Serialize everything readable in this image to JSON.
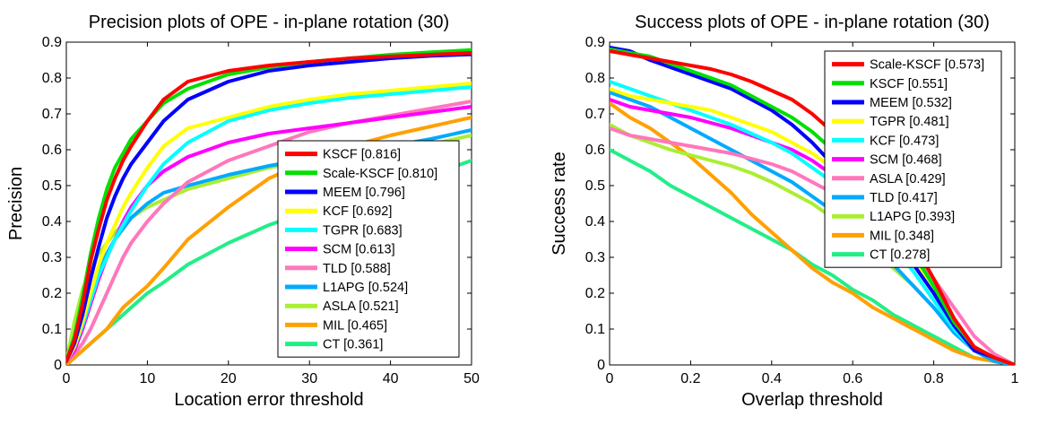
{
  "chart_data": [
    {
      "type": "line",
      "title": "Precision plots of OPE - in-plane rotation (30)",
      "xlabel": "Location error threshold",
      "ylabel": "Precision",
      "xlim": [
        0,
        50
      ],
      "ylim": [
        0,
        0.9
      ],
      "xticks": [
        "0",
        "10",
        "20",
        "30",
        "40",
        "50"
      ],
      "yticks": [
        "0",
        "0.1",
        "0.2",
        "0.3",
        "0.4",
        "0.5",
        "0.6",
        "0.7",
        "0.8",
        "0.9"
      ],
      "legend_position": "center-right",
      "x": [
        0,
        1,
        2,
        3,
        4,
        5,
        6,
        7,
        8,
        10,
        12,
        15,
        20,
        25,
        30,
        35,
        40,
        45,
        50
      ],
      "series": [
        {
          "name": "KSCF [0.816]",
          "color": "#ff0000",
          "values": [
            0.01,
            0.07,
            0.17,
            0.29,
            0.38,
            0.46,
            0.52,
            0.57,
            0.61,
            0.68,
            0.74,
            0.79,
            0.82,
            0.835,
            0.845,
            0.855,
            0.86,
            0.865,
            0.87
          ]
        },
        {
          "name": "Scale-KSCF [0.810]",
          "color": "#00e000",
          "values": [
            0.01,
            0.08,
            0.19,
            0.31,
            0.41,
            0.49,
            0.55,
            0.59,
            0.63,
            0.68,
            0.73,
            0.77,
            0.81,
            0.83,
            0.845,
            0.855,
            0.865,
            0.872,
            0.878
          ]
        },
        {
          "name": "MEEM [0.796]",
          "color": "#0000ff",
          "values": [
            0.01,
            0.06,
            0.14,
            0.24,
            0.33,
            0.41,
            0.47,
            0.52,
            0.56,
            0.62,
            0.68,
            0.74,
            0.79,
            0.82,
            0.835,
            0.845,
            0.855,
            0.862,
            0.866
          ]
        },
        {
          "name": "KCF [0.692]",
          "color": "#ffff00",
          "values": [
            0.01,
            0.05,
            0.12,
            0.2,
            0.28,
            0.34,
            0.39,
            0.44,
            0.48,
            0.55,
            0.61,
            0.66,
            0.69,
            0.72,
            0.74,
            0.755,
            0.765,
            0.775,
            0.785
          ]
        },
        {
          "name": "TGPR [0.683]",
          "color": "#00ffff",
          "values": [
            0.01,
            0.05,
            0.11,
            0.18,
            0.25,
            0.3,
            0.35,
            0.39,
            0.43,
            0.5,
            0.56,
            0.62,
            0.68,
            0.71,
            0.73,
            0.745,
            0.755,
            0.765,
            0.775
          ]
        },
        {
          "name": "SCM [0.613]",
          "color": "#ff00ff",
          "values": [
            0.01,
            0.04,
            0.1,
            0.17,
            0.24,
            0.3,
            0.35,
            0.4,
            0.44,
            0.5,
            0.54,
            0.58,
            0.62,
            0.645,
            0.66,
            0.675,
            0.69,
            0.705,
            0.72
          ]
        },
        {
          "name": "TLD [0.588]",
          "color": "#ff77bb",
          "values": [
            0.01,
            0.03,
            0.06,
            0.1,
            0.15,
            0.2,
            0.25,
            0.3,
            0.34,
            0.4,
            0.45,
            0.51,
            0.57,
            0.61,
            0.65,
            0.675,
            0.695,
            0.715,
            0.735
          ]
        },
        {
          "name": "L1APG [0.524]",
          "color": "#00aaff",
          "values": [
            0.01,
            0.05,
            0.12,
            0.19,
            0.26,
            0.31,
            0.35,
            0.38,
            0.41,
            0.45,
            0.48,
            0.5,
            0.53,
            0.555,
            0.575,
            0.595,
            0.61,
            0.63,
            0.655
          ]
        },
        {
          "name": "ASLA [0.521]",
          "color": "#aaee33",
          "values": [
            0.01,
            0.12,
            0.21,
            0.27,
            0.31,
            0.34,
            0.37,
            0.39,
            0.41,
            0.44,
            0.46,
            0.49,
            0.52,
            0.55,
            0.57,
            0.585,
            0.6,
            0.615,
            0.64
          ]
        },
        {
          "name": "MIL [0.465]",
          "color": "#ffa000",
          "values": [
            0.0,
            0.02,
            0.04,
            0.06,
            0.08,
            0.1,
            0.13,
            0.16,
            0.18,
            0.22,
            0.27,
            0.35,
            0.44,
            0.52,
            0.57,
            0.61,
            0.64,
            0.665,
            0.69
          ]
        },
        {
          "name": "CT [0.361]",
          "color": "#22ee88",
          "values": [
            0.0,
            0.02,
            0.04,
            0.06,
            0.08,
            0.1,
            0.12,
            0.14,
            0.16,
            0.2,
            0.23,
            0.28,
            0.34,
            0.39,
            0.43,
            0.47,
            0.5,
            0.53,
            0.57
          ]
        }
      ]
    },
    {
      "type": "line",
      "title": "Success plots of OPE - in-plane rotation (30)",
      "xlabel": "Overlap threshold",
      "ylabel": "Success rate",
      "xlim": [
        0,
        1
      ],
      "ylim": [
        0,
        0.9
      ],
      "xticks": [
        "0",
        "0.2",
        "0.4",
        "0.6",
        "0.8",
        "1"
      ],
      "yticks": [
        "0",
        "0.1",
        "0.2",
        "0.3",
        "0.4",
        "0.5",
        "0.6",
        "0.7",
        "0.8",
        "0.9"
      ],
      "legend_position": "top-right",
      "x": [
        0,
        0.05,
        0.1,
        0.15,
        0.2,
        0.25,
        0.3,
        0.35,
        0.4,
        0.45,
        0.5,
        0.55,
        0.6,
        0.65,
        0.7,
        0.75,
        0.8,
        0.85,
        0.9,
        0.95,
        1.0
      ],
      "series": [
        {
          "name": "Scale-KSCF [0.573]",
          "color": "#ff0000",
          "values": [
            0.875,
            0.865,
            0.855,
            0.845,
            0.835,
            0.825,
            0.81,
            0.79,
            0.765,
            0.74,
            0.7,
            0.65,
            0.59,
            0.51,
            0.43,
            0.34,
            0.24,
            0.13,
            0.05,
            0.02,
            0.0
          ]
        },
        {
          "name": "KSCF [0.551]",
          "color": "#00e000",
          "values": [
            0.88,
            0.87,
            0.86,
            0.84,
            0.82,
            0.8,
            0.78,
            0.75,
            0.72,
            0.69,
            0.65,
            0.6,
            0.54,
            0.47,
            0.39,
            0.31,
            0.22,
            0.12,
            0.05,
            0.02,
            0.0
          ]
        },
        {
          "name": "MEEM [0.532]",
          "color": "#0000ff",
          "values": [
            0.885,
            0.875,
            0.85,
            0.83,
            0.81,
            0.79,
            0.77,
            0.74,
            0.71,
            0.67,
            0.62,
            0.56,
            0.5,
            0.43,
            0.36,
            0.28,
            0.2,
            0.11,
            0.04,
            0.02,
            0.0
          ]
        },
        {
          "name": "TGPR [0.481]",
          "color": "#ffff00",
          "values": [
            0.77,
            0.75,
            0.74,
            0.73,
            0.72,
            0.71,
            0.69,
            0.67,
            0.65,
            0.62,
            0.59,
            0.55,
            0.5,
            0.44,
            0.37,
            0.29,
            0.2,
            0.11,
            0.04,
            0.02,
            0.0
          ]
        },
        {
          "name": "KCF [0.473]",
          "color": "#00ffff",
          "values": [
            0.79,
            0.77,
            0.75,
            0.73,
            0.71,
            0.69,
            0.67,
            0.645,
            0.62,
            0.59,
            0.55,
            0.51,
            0.46,
            0.4,
            0.33,
            0.26,
            0.18,
            0.1,
            0.04,
            0.02,
            0.0
          ]
        },
        {
          "name": "SCM [0.468]",
          "color": "#ff00ff",
          "values": [
            0.74,
            0.72,
            0.71,
            0.7,
            0.69,
            0.675,
            0.66,
            0.64,
            0.62,
            0.6,
            0.57,
            0.53,
            0.48,
            0.42,
            0.35,
            0.28,
            0.2,
            0.11,
            0.05,
            0.02,
            0.0
          ]
        },
        {
          "name": "ASLA [0.429]",
          "color": "#ff77bb",
          "values": [
            0.66,
            0.64,
            0.63,
            0.62,
            0.61,
            0.6,
            0.59,
            0.575,
            0.56,
            0.54,
            0.51,
            0.48,
            0.44,
            0.4,
            0.35,
            0.3,
            0.24,
            0.16,
            0.08,
            0.03,
            0.0
          ]
        },
        {
          "name": "TLD [0.417]",
          "color": "#00aaff",
          "values": [
            0.76,
            0.74,
            0.72,
            0.69,
            0.66,
            0.63,
            0.6,
            0.57,
            0.54,
            0.51,
            0.47,
            0.43,
            0.38,
            0.33,
            0.28,
            0.22,
            0.16,
            0.09,
            0.04,
            0.01,
            0.0
          ]
        },
        {
          "name": "L1APG [0.393]",
          "color": "#aaee33",
          "values": [
            0.67,
            0.64,
            0.62,
            0.6,
            0.585,
            0.57,
            0.555,
            0.535,
            0.51,
            0.48,
            0.45,
            0.41,
            0.37,
            0.32,
            0.27,
            0.22,
            0.16,
            0.1,
            0.05,
            0.02,
            0.0
          ]
        },
        {
          "name": "MIL [0.348]",
          "color": "#ffa000",
          "values": [
            0.73,
            0.69,
            0.66,
            0.62,
            0.58,
            0.53,
            0.48,
            0.42,
            0.37,
            0.32,
            0.27,
            0.23,
            0.2,
            0.16,
            0.13,
            0.1,
            0.07,
            0.04,
            0.02,
            0.01,
            0.0
          ]
        },
        {
          "name": "CT [0.278]",
          "color": "#22ee88",
          "values": [
            0.6,
            0.57,
            0.54,
            0.5,
            0.47,
            0.44,
            0.41,
            0.38,
            0.35,
            0.32,
            0.28,
            0.25,
            0.21,
            0.18,
            0.14,
            0.11,
            0.08,
            0.05,
            0.02,
            0.01,
            0.0
          ]
        }
      ]
    }
  ]
}
